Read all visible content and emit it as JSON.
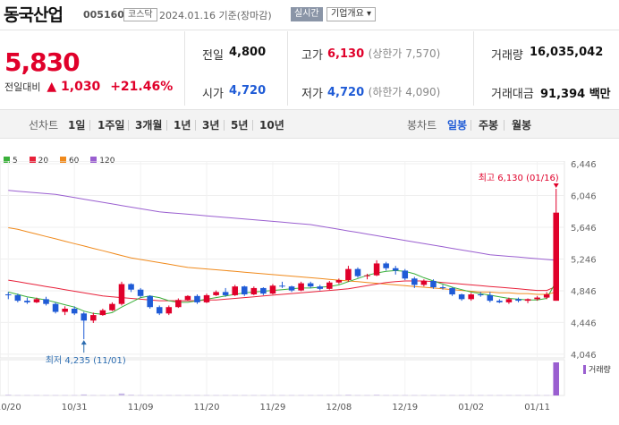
{
  "header": {
    "stock_name": "동국산업",
    "stock_code": "005160",
    "market": "코스닥",
    "date_text": "2024.01.16  기준(장마감)",
    "realtime_label": "실시간",
    "company_info_label": "기업개요 ▾"
  },
  "price": {
    "current": "5,830",
    "change_label": "전일대비",
    "change_arrow": "▲",
    "change_value": "1,030",
    "change_pct": "+21.46%"
  },
  "stats": {
    "prev_close_label": "전일",
    "prev_close": "4,800",
    "high_label": "고가",
    "high": "6,130",
    "high_note": "(상한가 7,570)",
    "volume_label": "거래량",
    "volume": "16,035,042",
    "open_label": "시가",
    "open": "4,720",
    "low_label": "저가",
    "low": "4,720",
    "low_note": "(하한가 4,090)",
    "amount_label": "거래대금",
    "amount": "91,394",
    "amount_unit": "백만"
  },
  "period_bar": {
    "line_chart_label": "선차트",
    "periods": [
      "1일",
      "1주일",
      "3개월",
      "1년",
      "3년",
      "5년",
      "10년"
    ],
    "candle_label": "봉차트",
    "candles": [
      "일봉",
      "주봉",
      "월봉"
    ],
    "active_candle": "일봉"
  },
  "colors": {
    "up": "#e0002a",
    "down": "#1f5bd6",
    "ma5": "#3ab03a",
    "ma20": "#e8213a",
    "ma60": "#f08a1c",
    "ma120": "#9a5fd0"
  },
  "chart_data": {
    "type": "candlestick",
    "legend": [
      {
        "label": "5",
        "color": "#3ab03a"
      },
      {
        "label": "20",
        "color": "#e8213a"
      },
      {
        "label": "60",
        "color": "#f08a1c"
      },
      {
        "label": "120",
        "color": "#9a5fd0"
      }
    ],
    "y_ticks": [
      4046,
      4446,
      4846,
      5246,
      5646,
      6046,
      6446
    ],
    "y_tick_labels": [
      "4,046",
      "4,446",
      "4,846",
      "5,246",
      "5,646",
      "6,046",
      "6,446"
    ],
    "ylim": [
      4000,
      6480
    ],
    "x_labels": [
      "10/20",
      "10/31",
      "11/09",
      "11/20",
      "11/29",
      "12/08",
      "12/19",
      "01/02",
      "01/11"
    ],
    "x_label_index": [
      0,
      7,
      14,
      21,
      28,
      35,
      42,
      49,
      56
    ],
    "max_annotation": "최고 6,130 (01/16)",
    "min_annotation": "최저 4,235 (11/01)",
    "volume_label": "거래량",
    "ohlc": [
      [
        4800,
        4830,
        4740,
        4790
      ],
      [
        4790,
        4810,
        4700,
        4720
      ],
      [
        4720,
        4760,
        4680,
        4700
      ],
      [
        4700,
        4760,
        4690,
        4740
      ],
      [
        4740,
        4770,
        4660,
        4680
      ],
      [
        4680,
        4700,
        4560,
        4580
      ],
      [
        4580,
        4650,
        4540,
        4620
      ],
      [
        4620,
        4650,
        4540,
        4560
      ],
      [
        4560,
        4580,
        4235,
        4470
      ],
      [
        4470,
        4570,
        4440,
        4540
      ],
      [
        4540,
        4620,
        4530,
        4600
      ],
      [
        4600,
        4700,
        4590,
        4680
      ],
      [
        4680,
        4960,
        4660,
        4930
      ],
      [
        4930,
        4940,
        4830,
        4860
      ],
      [
        4860,
        4880,
        4760,
        4780
      ],
      [
        4780,
        4790,
        4620,
        4640
      ],
      [
        4640,
        4660,
        4540,
        4560
      ],
      [
        4560,
        4660,
        4540,
        4640
      ],
      [
        4640,
        4750,
        4630,
        4730
      ],
      [
        4730,
        4790,
        4720,
        4780
      ],
      [
        4780,
        4800,
        4680,
        4700
      ],
      [
        4700,
        4810,
        4690,
        4790
      ],
      [
        4790,
        4850,
        4780,
        4830
      ],
      [
        4830,
        4880,
        4770,
        4790
      ],
      [
        4790,
        4920,
        4780,
        4900
      ],
      [
        4900,
        4910,
        4780,
        4800
      ],
      [
        4800,
        4900,
        4790,
        4880
      ],
      [
        4880,
        4890,
        4790,
        4810
      ],
      [
        4810,
        4930,
        4800,
        4910
      ],
      [
        4910,
        4960,
        4880,
        4900
      ],
      [
        4900,
        4910,
        4830,
        4850
      ],
      [
        4850,
        4960,
        4840,
        4940
      ],
      [
        4940,
        4960,
        4880,
        4900
      ],
      [
        4900,
        4920,
        4850,
        4870
      ],
      [
        4870,
        4970,
        4860,
        4950
      ],
      [
        4950,
        5000,
        4930,
        4980
      ],
      [
        4980,
        5160,
        4960,
        5120
      ],
      [
        5120,
        5140,
        5010,
        5030
      ],
      [
        5030,
        5060,
        4990,
        5040
      ],
      [
        5040,
        5230,
        5030,
        5190
      ],
      [
        5190,
        5210,
        5100,
        5130
      ],
      [
        5130,
        5160,
        5050,
        5100
      ],
      [
        5100,
        5120,
        4980,
        5000
      ],
      [
        5000,
        5020,
        4880,
        4920
      ],
      [
        4920,
        4990,
        4900,
        4970
      ],
      [
        4970,
        4990,
        4870,
        4890
      ],
      [
        4890,
        4920,
        4860,
        4880
      ],
      [
        4880,
        4890,
        4780,
        4800
      ],
      [
        4800,
        4810,
        4720,
        4740
      ],
      [
        4740,
        4820,
        4720,
        4800
      ],
      [
        4800,
        4830,
        4770,
        4790
      ],
      [
        4790,
        4830,
        4700,
        4720
      ],
      [
        4720,
        4740,
        4690,
        4700
      ],
      [
        4700,
        4760,
        4680,
        4740
      ],
      [
        4740,
        4760,
        4700,
        4720
      ],
      [
        4720,
        4750,
        4690,
        4740
      ],
      [
        4740,
        4780,
        4720,
        4760
      ],
      [
        4760,
        4830,
        4740,
        4800
      ],
      [
        4720,
        6130,
        4720,
        5830
      ]
    ],
    "ma5": [
      4830,
      4800,
      4770,
      4750,
      4730,
      4700,
      4670,
      4640,
      4590,
      4560,
      4550,
      4570,
      4640,
      4700,
      4760,
      4780,
      4760,
      4720,
      4700,
      4700,
      4720,
      4740,
      4760,
      4780,
      4800,
      4820,
      4830,
      4840,
      4850,
      4860,
      4870,
      4880,
      4880,
      4890,
      4900,
      4920,
      4960,
      5000,
      5040,
      5070,
      5090,
      5100,
      5090,
      5060,
      5010,
      4970,
      4930,
      4890,
      4860,
      4830,
      4810,
      4790,
      4770,
      4750,
      4740,
      4730,
      4730,
      4750,
      4960
    ],
    "ma20": [
      4980,
      4960,
      4940,
      4920,
      4900,
      4880,
      4860,
      4840,
      4820,
      4800,
      4780,
      4770,
      4760,
      4750,
      4740,
      4730,
      4720,
      4720,
      4720,
      4720,
      4720,
      4730,
      4730,
      4740,
      4750,
      4760,
      4770,
      4780,
      4790,
      4800,
      4810,
      4820,
      4830,
      4840,
      4850,
      4860,
      4870,
      4890,
      4910,
      4930,
      4950,
      4960,
      4970,
      4970,
      4970,
      4960,
      4950,
      4940,
      4930,
      4920,
      4910,
      4900,
      4890,
      4880,
      4870,
      4860,
      4850,
      4850,
      4900
    ],
    "ma60": [
      5640,
      5620,
      5590,
      5560,
      5530,
      5500,
      5470,
      5440,
      5410,
      5380,
      5350,
      5320,
      5290,
      5260,
      5240,
      5220,
      5200,
      5180,
      5160,
      5140,
      5130,
      5120,
      5110,
      5100,
      5090,
      5080,
      5070,
      5060,
      5050,
      5040,
      5030,
      5020,
      5010,
      5000,
      4990,
      4980,
      4970,
      4960,
      4950,
      4940,
      4930,
      4920,
      4910,
      4900,
      4890,
      4880,
      4870,
      4860,
      4850,
      4840,
      4830,
      4830,
      4820,
      4820,
      4810,
      4810,
      4800,
      4800,
      4830
    ],
    "ma120": [
      6110,
      6100,
      6090,
      6080,
      6070,
      6060,
      6040,
      6020,
      6000,
      5980,
      5960,
      5940,
      5920,
      5900,
      5880,
      5860,
      5840,
      5830,
      5820,
      5810,
      5800,
      5790,
      5780,
      5770,
      5760,
      5750,
      5740,
      5730,
      5720,
      5710,
      5700,
      5690,
      5680,
      5660,
      5640,
      5620,
      5600,
      5580,
      5560,
      5540,
      5520,
      5500,
      5480,
      5460,
      5440,
      5420,
      5400,
      5380,
      5360,
      5340,
      5320,
      5300,
      5290,
      5280,
      5270,
      5260,
      5250,
      5240,
      5230
    ],
    "volume": [
      0.02,
      0.01,
      0.01,
      0.01,
      0.01,
      0.01,
      0.01,
      0.01,
      0.03,
      0.01,
      0.01,
      0.01,
      0.06,
      0.02,
      0.01,
      0.01,
      0.01,
      0.01,
      0.01,
      0.01,
      0.01,
      0.01,
      0.01,
      0.01,
      0.01,
      0.01,
      0.01,
      0.01,
      0.01,
      0.01,
      0.01,
      0.01,
      0.01,
      0.01,
      0.01,
      0.01,
      0.02,
      0.01,
      0.01,
      0.02,
      0.01,
      0.01,
      0.01,
      0.01,
      0.01,
      0.01,
      0.01,
      0.01,
      0.01,
      0.01,
      0.01,
      0.01,
      0.01,
      0.01,
      0.01,
      0.01,
      0.01,
      0.01,
      1.0
    ]
  }
}
